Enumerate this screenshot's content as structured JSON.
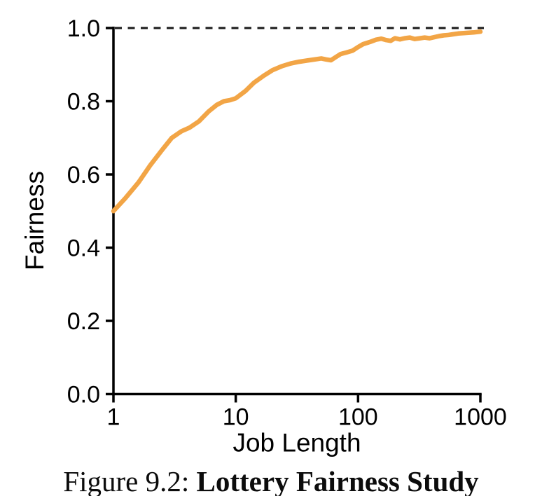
{
  "figure": {
    "caption_prefix": "Figure 9.2: ",
    "caption_title": "Lottery Fairness Study"
  },
  "chart_data": {
    "type": "line",
    "title": "",
    "xlabel": "Job Length",
    "ylabel": "Fairness",
    "x_scale": "log",
    "xlim": [
      1,
      1000
    ],
    "ylim": [
      0.0,
      1.0
    ],
    "x_ticks": [
      1,
      10,
      100,
      1000
    ],
    "y_ticks": [
      0.0,
      0.2,
      0.4,
      0.6,
      0.8,
      1.0
    ],
    "grid": false,
    "legend_position": "none",
    "axis_color": "#000000",
    "reference_line": {
      "y": 1.0,
      "style": "dashed",
      "color": "#1a1a1a"
    },
    "series": [
      {
        "name": "fairness",
        "color": "#F2A546",
        "points": [
          [
            1,
            0.5
          ],
          [
            1.25,
            0.535
          ],
          [
            1.6,
            0.578
          ],
          [
            2,
            0.625
          ],
          [
            2.5,
            0.667
          ],
          [
            3,
            0.7
          ],
          [
            3.6,
            0.718
          ],
          [
            4.2,
            0.728
          ],
          [
            5,
            0.745
          ],
          [
            6,
            0.772
          ],
          [
            7,
            0.79
          ],
          [
            8,
            0.8
          ],
          [
            9,
            0.803
          ],
          [
            10,
            0.808
          ],
          [
            12,
            0.828
          ],
          [
            14,
            0.85
          ],
          [
            17,
            0.87
          ],
          [
            20,
            0.885
          ],
          [
            24,
            0.896
          ],
          [
            28,
            0.903
          ],
          [
            33,
            0.908
          ],
          [
            38,
            0.911
          ],
          [
            44,
            0.914
          ],
          [
            50,
            0.917
          ],
          [
            55,
            0.914
          ],
          [
            60,
            0.912
          ],
          [
            66,
            0.921
          ],
          [
            72,
            0.929
          ],
          [
            80,
            0.933
          ],
          [
            90,
            0.938
          ],
          [
            100,
            0.948
          ],
          [
            110,
            0.956
          ],
          [
            125,
            0.962
          ],
          [
            140,
            0.968
          ],
          [
            155,
            0.971
          ],
          [
            170,
            0.967
          ],
          [
            185,
            0.965
          ],
          [
            200,
            0.972
          ],
          [
            220,
            0.969
          ],
          [
            240,
            0.972
          ],
          [
            265,
            0.974
          ],
          [
            290,
            0.97
          ],
          [
            320,
            0.972
          ],
          [
            350,
            0.974
          ],
          [
            385,
            0.972
          ],
          [
            420,
            0.975
          ],
          [
            460,
            0.978
          ],
          [
            500,
            0.98
          ],
          [
            550,
            0.981
          ],
          [
            600,
            0.983
          ],
          [
            660,
            0.985
          ],
          [
            730,
            0.986
          ],
          [
            800,
            0.987
          ],
          [
            880,
            0.988
          ],
          [
            1000,
            0.99
          ]
        ]
      }
    ]
  }
}
